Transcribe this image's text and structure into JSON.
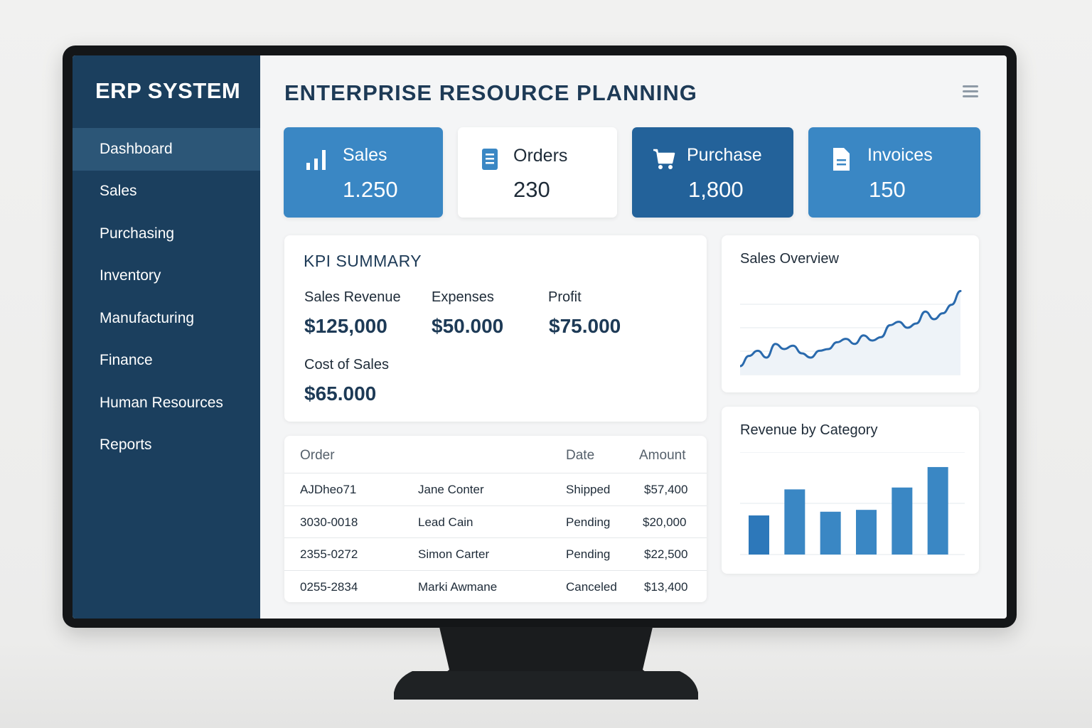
{
  "app": {
    "brand": "ERP SYSTEM",
    "title": "ENTERPRISE RESOURCE PLANNING"
  },
  "sidebar": {
    "items": [
      {
        "label": "Dashboard",
        "active": true
      },
      {
        "label": "Sales"
      },
      {
        "label": "Purchasing"
      },
      {
        "label": "Inventory"
      },
      {
        "label": "Manufacturing"
      },
      {
        "label": "Finance"
      },
      {
        "label": "Human Resources"
      },
      {
        "label": "Reports"
      }
    ]
  },
  "header": {
    "menu_icon": "hamburger-menu-icon"
  },
  "stats": [
    {
      "label": "Sales",
      "value": "1.250",
      "icon": "bar-chart-icon",
      "color": "#3a87c4"
    },
    {
      "label": "Orders",
      "value": "230",
      "icon": "document-list-icon",
      "color": "#ffffff"
    },
    {
      "label": "Purchase",
      "value": "1,800",
      "icon": "cart-icon",
      "color": "#23629a"
    },
    {
      "label": "Invoices",
      "value": "150",
      "icon": "invoice-icon",
      "color": "#3a87c4"
    }
  ],
  "kpi": {
    "title": "KPI SUMMARY",
    "items": [
      {
        "label": "Sales Revenue",
        "value": "$125,000"
      },
      {
        "label": "Expenses",
        "value": "$50.000"
      },
      {
        "label": "Profit",
        "value": "$75.000"
      },
      {
        "label": "Cost of Sales",
        "value": "$65.000"
      }
    ]
  },
  "orders_table": {
    "headers": {
      "order": "Order",
      "date": "Date",
      "amount": "Amount"
    },
    "rows": [
      {
        "order": "AJDheo71",
        "name": "Jane Conter",
        "status": "Shipped",
        "amount": "$57,400"
      },
      {
        "order": "3030-0018",
        "name": "Lead Cain",
        "status": "Pending",
        "amount": "$20,000"
      },
      {
        "order": "2355-0272",
        "name": "Simon Carter",
        "status": "Pending",
        "amount": "$22,500"
      },
      {
        "order": "0255-2834",
        "name": "Marki Awmane",
        "status": "Canceled",
        "amount": "$13,400"
      }
    ]
  },
  "colors": {
    "sidebar": "#1b3f5e",
    "accent": "#3a87c4",
    "accent_dark": "#23629a",
    "line": "#2a6aad"
  },
  "chart_data": [
    {
      "type": "line",
      "title": "Sales Overview",
      "x": [
        0,
        1,
        2,
        3,
        4,
        5,
        6,
        7,
        8,
        9,
        10,
        11,
        12,
        13,
        14,
        15,
        16,
        17,
        18,
        19,
        20,
        21,
        22,
        23,
        24,
        25
      ],
      "values": [
        10,
        22,
        28,
        20,
        36,
        30,
        34,
        25,
        20,
        28,
        30,
        38,
        42,
        36,
        46,
        40,
        44,
        58,
        62,
        55,
        60,
        74,
        65,
        72,
        82,
        98
      ],
      "ylim": [
        0,
        110
      ],
      "grid": true
    },
    {
      "type": "bar",
      "title": "Revenue by Category",
      "categories": [
        "1",
        "2",
        "3",
        "4",
        "5",
        "6"
      ],
      "values": [
        42,
        70,
        46,
        48,
        72,
        94
      ],
      "ylim": [
        0,
        110
      ],
      "grid": true
    }
  ]
}
